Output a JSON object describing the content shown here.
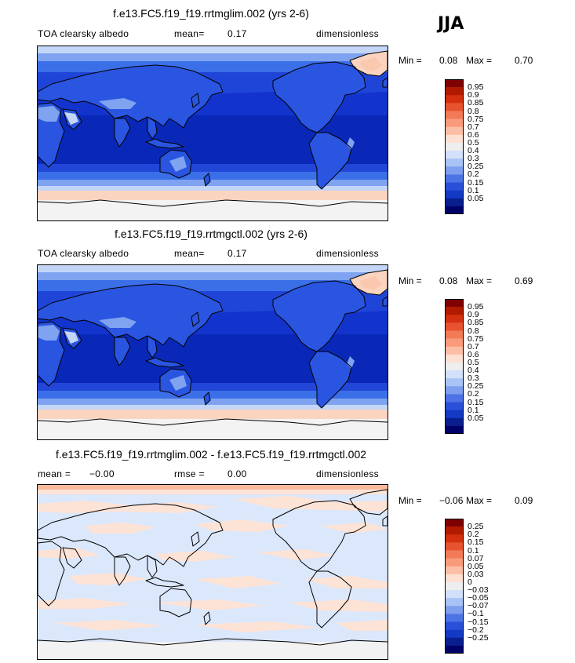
{
  "season": "JJA",
  "panels": [
    {
      "title": "f.e13.FC5.f19_f19.rrtmglim.002 (yrs 2-6)",
      "left_label": "TOA clearsky albedo",
      "stat_label": "mean=",
      "stat_value": "0.17",
      "stat2_label": "",
      "stat2_value": "",
      "units": "dimensionless",
      "min_label": "Min =",
      "min_value": "0.08",
      "max_label": "Max =",
      "max_value": "0.70",
      "kind": "abs",
      "colorbar_levels": [
        "0.95",
        "0.9",
        "0.85",
        "0.8",
        "0.75",
        "0.7",
        "0.6",
        "0.5",
        "0.4",
        "0.3",
        "0.25",
        "0.2",
        "0.15",
        "0.1",
        "0.05"
      ]
    },
    {
      "title": "f.e13.FC5.f19_f19.rrtmgctl.002 (yrs 2-6)",
      "left_label": "TOA clearsky albedo",
      "stat_label": "mean=",
      "stat_value": "0.17",
      "stat2_label": "",
      "stat2_value": "",
      "units": "dimensionless",
      "min_label": "Min =",
      "min_value": "0.08",
      "max_label": "Max =",
      "max_value": "0.69",
      "kind": "abs",
      "colorbar_levels": [
        "0.95",
        "0.9",
        "0.85",
        "0.8",
        "0.75",
        "0.7",
        "0.6",
        "0.5",
        "0.4",
        "0.3",
        "0.25",
        "0.2",
        "0.15",
        "0.1",
        "0.05"
      ]
    },
    {
      "title": "f.e13.FC5.f19_f19.rrtmglim.002 - f.e13.FC5.f19_f19.rrtmgctl.002",
      "left_label": "",
      "stat_label": "mean =",
      "stat_value": "−0.00",
      "stat2_label": "rmse =",
      "stat2_value": "0.00",
      "units": "dimensionless",
      "min_label": "Min =",
      "min_value": "−0.06",
      "max_label": "Max =",
      "max_value": "0.09",
      "kind": "diff",
      "colorbar_levels": [
        "0.25",
        "0.2",
        "0.15",
        "0.1",
        "0.07",
        "0.05",
        "0.03",
        "0",
        "−0.03",
        "−0.05",
        "−0.07",
        "−0.1",
        "−0.15",
        "−0.2",
        "−0.25"
      ]
    }
  ],
  "colors": {
    "colorbar": [
      "#7f0000",
      "#b21a00",
      "#d4300f",
      "#e8532f",
      "#f27a57",
      "#f99b7b",
      "#fcbea4",
      "#fde0d2",
      "#eeeeee",
      "#d2e0fa",
      "#a8c3f5",
      "#7d9fee",
      "#4e73e6",
      "#2a4fd8",
      "#123ac4",
      "#0a1f8f",
      "#00006a"
    ],
    "ocean_abs": "#1234cc",
    "ocean_deep": "#0a28b8",
    "land_abs": "#2a55e0",
    "band_mid": "#3b6fe8",
    "band_light": "#7fa3f0",
    "band_pale": "#c4d6f8",
    "band_peach": "#fbd4c0",
    "diff_neg": "#dbe7fb",
    "diff_pos": "#fde3d6",
    "diff_zero": "#f2f2f2"
  }
}
